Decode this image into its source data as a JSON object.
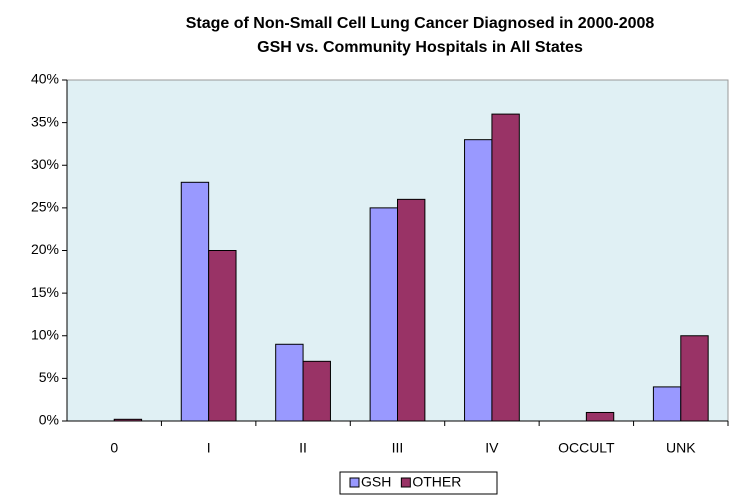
{
  "chart_data": {
    "type": "bar",
    "title": "Stage of Non-Small Cell Lung Cancer Diagnosed in 2000-2008",
    "subtitle": "GSH vs. Community Hospitals in All States",
    "categories": [
      "0",
      "I",
      "II",
      "III",
      "IV",
      "OCCULT",
      "UNK"
    ],
    "series": [
      {
        "name": "GSH",
        "color": "#9999ff",
        "values": [
          0,
          28,
          9,
          25,
          33,
          0,
          4
        ]
      },
      {
        "name": "OTHER",
        "color": "#993366",
        "values": [
          0.2,
          20,
          7,
          26,
          36,
          1,
          10
        ]
      }
    ],
    "ylim": [
      0,
      40
    ],
    "yticks": [
      {
        "value": 0,
        "label": "0%"
      },
      {
        "value": 5,
        "label": "5%"
      },
      {
        "value": 10,
        "label": "10%"
      },
      {
        "value": 15,
        "label": "15%"
      },
      {
        "value": 20,
        "label": "20%"
      },
      {
        "value": 25,
        "label": "25%"
      },
      {
        "value": 30,
        "label": "30%"
      },
      {
        "value": 35,
        "label": "35%"
      },
      {
        "value": 40,
        "label": "40%"
      }
    ],
    "legend": "bottom"
  }
}
